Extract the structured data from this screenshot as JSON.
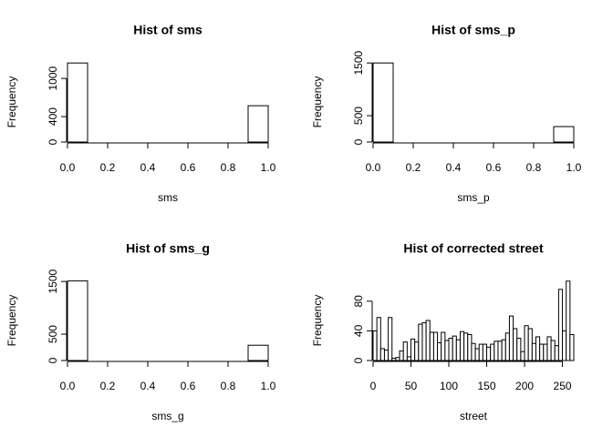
{
  "chart_data": [
    {
      "type": "histogram",
      "title": "Hist of sms",
      "x_label": "sms",
      "y_label": "Frequency",
      "bins": [
        0,
        0.1,
        0.2,
        0.3,
        0.4,
        0.5,
        0.6,
        0.7,
        0.8,
        0.9,
        1.0
      ],
      "values": [
        1243,
        0,
        0,
        0,
        0,
        0,
        0,
        0,
        0,
        571
      ],
      "xlim": [
        0,
        1
      ],
      "ylim": [
        0,
        1260
      ],
      "xticks": [
        {
          "value": 0,
          "label": "0.0"
        },
        0.2,
        0.4,
        0.6,
        0.8,
        {
          "value": 1,
          "label": "1.0"
        }
      ],
      "yticks": [
        0,
        400,
        1000
      ],
      "color": "#ffffff"
    },
    {
      "type": "histogram",
      "title": "Hist of sms_p",
      "x_label": "sms_p",
      "y_label": "Frequency",
      "bins": [
        0,
        0.1,
        0.2,
        0.3,
        0.4,
        0.5,
        0.6,
        0.7,
        0.8,
        0.9,
        1.0
      ],
      "values": [
        1500,
        0,
        0,
        0,
        0,
        0,
        0,
        0,
        0,
        293
      ],
      "xlim": [
        0,
        1
      ],
      "ylim": [
        0,
        1520
      ],
      "xticks": [
        {
          "value": 0,
          "label": "0.0"
        },
        0.2,
        0.4,
        0.6,
        0.8,
        {
          "value": 1,
          "label": "1.0"
        }
      ],
      "yticks": [
        0,
        500,
        1500
      ],
      "color": "#ffffff"
    },
    {
      "type": "histogram",
      "title": "Hist of sms_g",
      "x_label": "sms_g",
      "y_label": "Frequency",
      "bins": [
        0,
        0.1,
        0.2,
        0.3,
        0.4,
        0.5,
        0.6,
        0.7,
        0.8,
        0.9,
        1.0
      ],
      "values": [
        1510,
        0,
        0,
        0,
        0,
        0,
        0,
        0,
        0,
        290
      ],
      "xlim": [
        0,
        1
      ],
      "ylim": [
        0,
        1520
      ],
      "xticks": [
        {
          "value": 0,
          "label": "0.0"
        },
        0.2,
        0.4,
        0.6,
        0.8,
        {
          "value": 1,
          "label": "1.0"
        }
      ],
      "yticks": [
        0,
        500,
        1500
      ],
      "color": "#ffffff"
    },
    {
      "type": "histogram",
      "title": "Hist of corrected street",
      "x_label": "street",
      "y_label": "Frequency",
      "bins": [
        0,
        5,
        10,
        15,
        20,
        25,
        30,
        35,
        40,
        45,
        50,
        55,
        60,
        65,
        70,
        75,
        80,
        85,
        90,
        95,
        100,
        105,
        110,
        115,
        120,
        125,
        130,
        135,
        140,
        145,
        150,
        155,
        160,
        165,
        170,
        175,
        180,
        185,
        190,
        195,
        200,
        205,
        210,
        215,
        220,
        225,
        230,
        235,
        240,
        245,
        250,
        255,
        260,
        265
      ],
      "values": [
        40,
        58,
        16,
        14,
        58,
        3,
        4,
        13,
        25,
        5,
        29,
        25,
        49,
        51,
        54,
        38,
        38,
        24,
        38,
        27,
        30,
        33,
        28,
        39,
        37,
        35,
        23,
        16,
        22,
        22,
        18,
        22,
        26,
        26,
        28,
        37,
        60,
        43,
        30,
        12,
        47,
        43,
        23,
        32,
        22,
        22,
        32,
        27,
        20,
        96,
        40,
        107,
        35
      ],
      "xlim": [
        0,
        265
      ],
      "ylim": [
        0,
        108
      ],
      "xticks": [
        0,
        50,
        100,
        150,
        200,
        250
      ],
      "yticks": [
        0,
        40,
        80
      ],
      "color": "#ffffff"
    }
  ]
}
